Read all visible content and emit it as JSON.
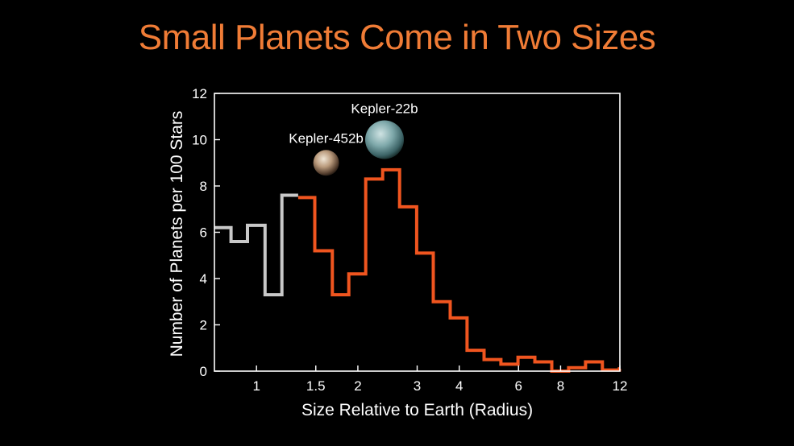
{
  "title": "Small Planets Come in Two Sizes",
  "colors": {
    "background": "#000000",
    "title": "#f07c36",
    "axes": "#ffffff",
    "series_gray": "#c8c8c8",
    "series_orange": "#f0551f"
  },
  "chart_data": {
    "type": "histogram-step",
    "title": "Small Planets Come in Two Sizes",
    "xlabel": "Size Relative to Earth (Radius)",
    "ylabel": "Number of Planets per 100 Stars",
    "x_scale": "log",
    "xlim": [
      0.75,
      12
    ],
    "ylim": [
      0,
      12
    ],
    "x_ticks": [
      {
        "value": 1,
        "label": "1"
      },
      {
        "value": 1.5,
        "label": "1.5"
      },
      {
        "value": 2,
        "label": "2"
      },
      {
        "value": 3,
        "label": "3"
      },
      {
        "value": 4,
        "label": "4"
      },
      {
        "value": 6,
        "label": "6"
      },
      {
        "value": 8,
        "label": "8"
      },
      {
        "value": 12,
        "label": "12"
      }
    ],
    "y_ticks": [
      {
        "value": 0,
        "label": "0"
      },
      {
        "value": 2,
        "label": "2"
      },
      {
        "value": 4,
        "label": "4"
      },
      {
        "value": 6,
        "label": "6"
      },
      {
        "value": 8,
        "label": "8"
      },
      {
        "value": 10,
        "label": "10"
      },
      {
        "value": 12,
        "label": "12"
      }
    ],
    "series": [
      {
        "color": "#c8c8c8",
        "bins": [
          {
            "x0": 0.75,
            "x1": 0.84,
            "y": 6.2
          },
          {
            "x0": 0.84,
            "x1": 0.94,
            "y": 5.6
          },
          {
            "x0": 0.94,
            "x1": 1.06,
            "y": 6.3
          },
          {
            "x0": 1.06,
            "x1": 1.19,
            "y": 3.3
          },
          {
            "x0": 1.19,
            "x1": 1.33,
            "y": 7.6
          }
        ]
      },
      {
        "color": "#f0551f",
        "bins": [
          {
            "x0": 1.33,
            "x1": 1.49,
            "y": 7.5
          },
          {
            "x0": 1.49,
            "x1": 1.68,
            "y": 5.2
          },
          {
            "x0": 1.68,
            "x1": 1.88,
            "y": 3.3
          },
          {
            "x0": 1.88,
            "x1": 2.11,
            "y": 4.2
          },
          {
            "x0": 2.11,
            "x1": 2.37,
            "y": 8.3
          },
          {
            "x0": 2.37,
            "x1": 2.66,
            "y": 8.7
          },
          {
            "x0": 2.66,
            "x1": 2.99,
            "y": 7.1
          },
          {
            "x0": 2.99,
            "x1": 3.35,
            "y": 5.1
          },
          {
            "x0": 3.35,
            "x1": 3.76,
            "y": 3.0
          },
          {
            "x0": 3.76,
            "x1": 4.22,
            "y": 2.3
          },
          {
            "x0": 4.22,
            "x1": 4.74,
            "y": 0.9
          },
          {
            "x0": 4.74,
            "x1": 5.32,
            "y": 0.5
          },
          {
            "x0": 5.32,
            "x1": 5.98,
            "y": 0.3
          },
          {
            "x0": 5.98,
            "x1": 6.71,
            "y": 0.6
          },
          {
            "x0": 6.71,
            "x1": 7.53,
            "y": 0.4
          },
          {
            "x0": 7.53,
            "x1": 8.45,
            "y": 0.0
          },
          {
            "x0": 8.45,
            "x1": 9.49,
            "y": 0.15
          },
          {
            "x0": 9.49,
            "x1": 10.65,
            "y": 0.4
          },
          {
            "x0": 10.65,
            "x1": 11.96,
            "y": 0.05
          },
          {
            "x0": 11.96,
            "x1": 12.0,
            "y": 0.1
          }
        ]
      }
    ],
    "annotations": [
      {
        "label": "Kepler-452b",
        "x": 1.61,
        "y": 9.0,
        "radius": 1.6,
        "icon": "rocky-planet-icon"
      },
      {
        "label": "Kepler-22b",
        "x": 2.4,
        "y": 10.0,
        "radius": 2.4,
        "icon": "ocean-planet-icon"
      }
    ]
  }
}
